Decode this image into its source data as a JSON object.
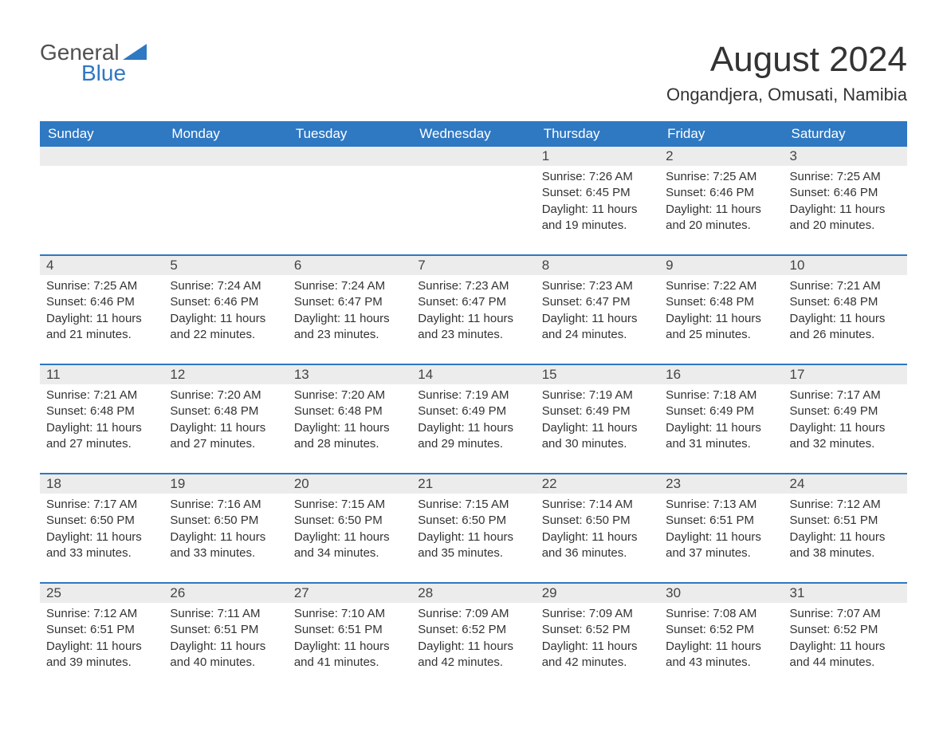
{
  "logo": {
    "text_top": "General",
    "text_bottom": "Blue",
    "accent_color": "#2f78c2"
  },
  "title": "August 2024",
  "location": "Ongandjera, Omusati, Namibia",
  "colors": {
    "header_bg": "#2f78c2",
    "header_text": "#ffffff",
    "daynum_bg": "#ececec",
    "row_border": "#2f78c2",
    "body_text": "#333333",
    "background": "#ffffff"
  },
  "fonts": {
    "title_size_pt": 33,
    "location_size_pt": 17,
    "header_cell_pt": 13,
    "daynum_pt": 13,
    "body_pt": 11
  },
  "day_headers": [
    "Sunday",
    "Monday",
    "Tuesday",
    "Wednesday",
    "Thursday",
    "Friday",
    "Saturday"
  ],
  "weeks": [
    [
      {
        "empty": true
      },
      {
        "empty": true
      },
      {
        "empty": true
      },
      {
        "empty": true
      },
      {
        "num": "1",
        "sunrise": "7:26 AM",
        "sunset": "6:45 PM",
        "daylight": "11 hours and 19 minutes."
      },
      {
        "num": "2",
        "sunrise": "7:25 AM",
        "sunset": "6:46 PM",
        "daylight": "11 hours and 20 minutes."
      },
      {
        "num": "3",
        "sunrise": "7:25 AM",
        "sunset": "6:46 PM",
        "daylight": "11 hours and 20 minutes."
      }
    ],
    [
      {
        "num": "4",
        "sunrise": "7:25 AM",
        "sunset": "6:46 PM",
        "daylight": "11 hours and 21 minutes."
      },
      {
        "num": "5",
        "sunrise": "7:24 AM",
        "sunset": "6:46 PM",
        "daylight": "11 hours and 22 minutes."
      },
      {
        "num": "6",
        "sunrise": "7:24 AM",
        "sunset": "6:47 PM",
        "daylight": "11 hours and 23 minutes."
      },
      {
        "num": "7",
        "sunrise": "7:23 AM",
        "sunset": "6:47 PM",
        "daylight": "11 hours and 23 minutes."
      },
      {
        "num": "8",
        "sunrise": "7:23 AM",
        "sunset": "6:47 PM",
        "daylight": "11 hours and 24 minutes."
      },
      {
        "num": "9",
        "sunrise": "7:22 AM",
        "sunset": "6:48 PM",
        "daylight": "11 hours and 25 minutes."
      },
      {
        "num": "10",
        "sunrise": "7:21 AM",
        "sunset": "6:48 PM",
        "daylight": "11 hours and 26 minutes."
      }
    ],
    [
      {
        "num": "11",
        "sunrise": "7:21 AM",
        "sunset": "6:48 PM",
        "daylight": "11 hours and 27 minutes."
      },
      {
        "num": "12",
        "sunrise": "7:20 AM",
        "sunset": "6:48 PM",
        "daylight": "11 hours and 27 minutes."
      },
      {
        "num": "13",
        "sunrise": "7:20 AM",
        "sunset": "6:48 PM",
        "daylight": "11 hours and 28 minutes."
      },
      {
        "num": "14",
        "sunrise": "7:19 AM",
        "sunset": "6:49 PM",
        "daylight": "11 hours and 29 minutes."
      },
      {
        "num": "15",
        "sunrise": "7:19 AM",
        "sunset": "6:49 PM",
        "daylight": "11 hours and 30 minutes."
      },
      {
        "num": "16",
        "sunrise": "7:18 AM",
        "sunset": "6:49 PM",
        "daylight": "11 hours and 31 minutes."
      },
      {
        "num": "17",
        "sunrise": "7:17 AM",
        "sunset": "6:49 PM",
        "daylight": "11 hours and 32 minutes."
      }
    ],
    [
      {
        "num": "18",
        "sunrise": "7:17 AM",
        "sunset": "6:50 PM",
        "daylight": "11 hours and 33 minutes."
      },
      {
        "num": "19",
        "sunrise": "7:16 AM",
        "sunset": "6:50 PM",
        "daylight": "11 hours and 33 minutes."
      },
      {
        "num": "20",
        "sunrise": "7:15 AM",
        "sunset": "6:50 PM",
        "daylight": "11 hours and 34 minutes."
      },
      {
        "num": "21",
        "sunrise": "7:15 AM",
        "sunset": "6:50 PM",
        "daylight": "11 hours and 35 minutes."
      },
      {
        "num": "22",
        "sunrise": "7:14 AM",
        "sunset": "6:50 PM",
        "daylight": "11 hours and 36 minutes."
      },
      {
        "num": "23",
        "sunrise": "7:13 AM",
        "sunset": "6:51 PM",
        "daylight": "11 hours and 37 minutes."
      },
      {
        "num": "24",
        "sunrise": "7:12 AM",
        "sunset": "6:51 PM",
        "daylight": "11 hours and 38 minutes."
      }
    ],
    [
      {
        "num": "25",
        "sunrise": "7:12 AM",
        "sunset": "6:51 PM",
        "daylight": "11 hours and 39 minutes."
      },
      {
        "num": "26",
        "sunrise": "7:11 AM",
        "sunset": "6:51 PM",
        "daylight": "11 hours and 40 minutes."
      },
      {
        "num": "27",
        "sunrise": "7:10 AM",
        "sunset": "6:51 PM",
        "daylight": "11 hours and 41 minutes."
      },
      {
        "num": "28",
        "sunrise": "7:09 AM",
        "sunset": "6:52 PM",
        "daylight": "11 hours and 42 minutes."
      },
      {
        "num": "29",
        "sunrise": "7:09 AM",
        "sunset": "6:52 PM",
        "daylight": "11 hours and 42 minutes."
      },
      {
        "num": "30",
        "sunrise": "7:08 AM",
        "sunset": "6:52 PM",
        "daylight": "11 hours and 43 minutes."
      },
      {
        "num": "31",
        "sunrise": "7:07 AM",
        "sunset": "6:52 PM",
        "daylight": "11 hours and 44 minutes."
      }
    ]
  ],
  "labels": {
    "sunrise_prefix": "Sunrise: ",
    "sunset_prefix": "Sunset: ",
    "daylight_prefix": "Daylight: "
  }
}
